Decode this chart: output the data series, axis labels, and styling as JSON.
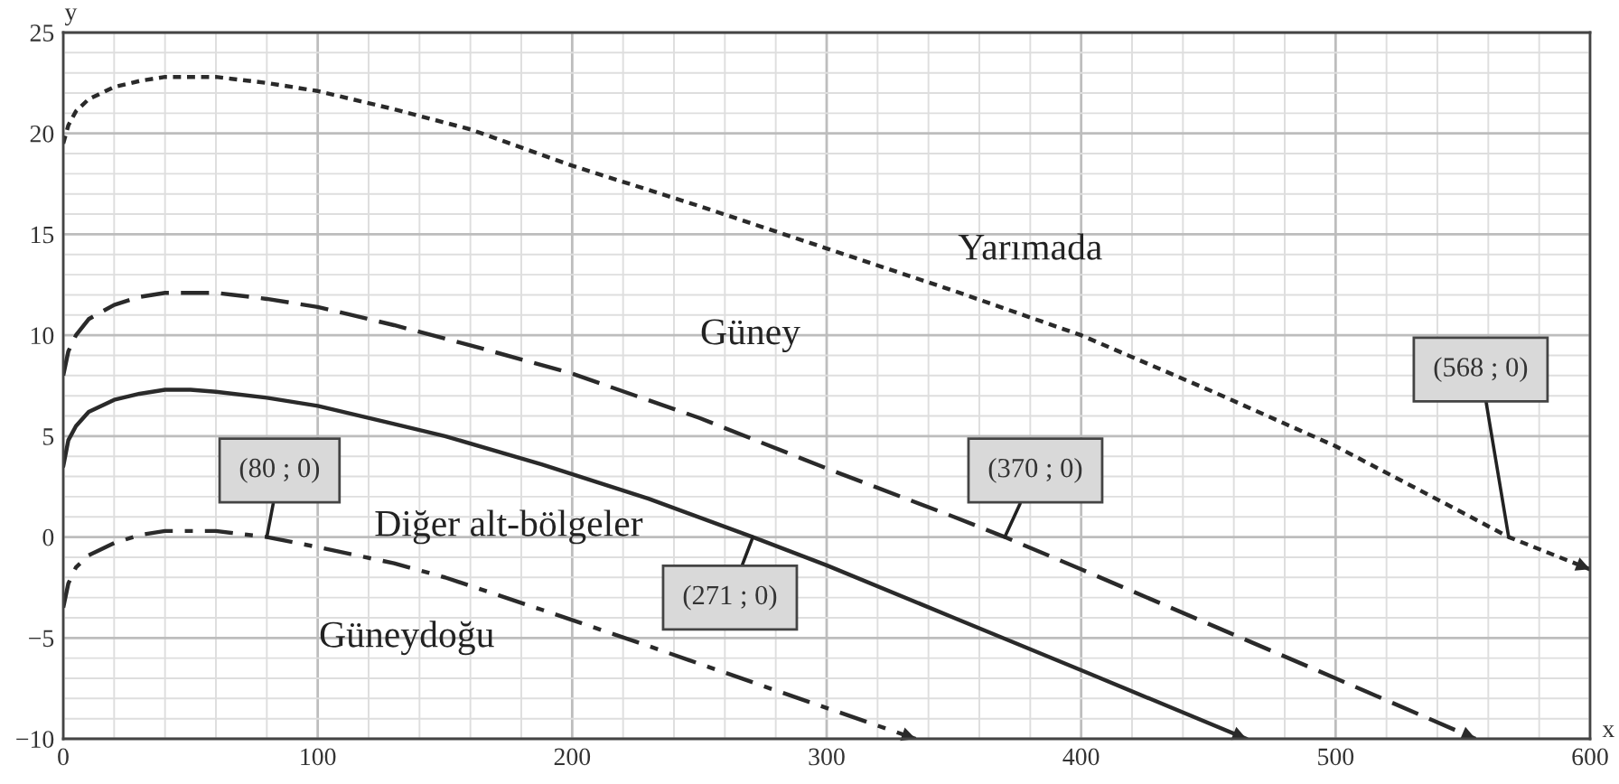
{
  "chart_data": {
    "type": "line",
    "xlabel": "x",
    "ylabel": "y",
    "xlim": [
      0,
      600
    ],
    "ylim": [
      -10,
      25
    ],
    "xticks": [
      0,
      100,
      200,
      300,
      400,
      500,
      600
    ],
    "yticks": [
      -10,
      -5,
      0,
      5,
      10,
      15,
      20,
      25
    ],
    "grid": true,
    "legend": false,
    "marker": "none",
    "series": [
      {
        "name": "Yarımada",
        "color": "#2a2a2a",
        "line_style": "dotted",
        "x": [
          0,
          2,
          5,
          10,
          20,
          30,
          40,
          50,
          60,
          80,
          100,
          130,
          160,
          200,
          250,
          300,
          350,
          400,
          450,
          500,
          550,
          568,
          600
        ],
        "values": [
          19.5,
          20.4,
          21.1,
          21.7,
          22.3,
          22.6,
          22.8,
          22.8,
          22.8,
          22.5,
          22.1,
          21.2,
          20.2,
          18.4,
          16.4,
          14.3,
          12.2,
          10.0,
          7.3,
          4.5,
          1.2,
          0,
          -1.6
        ]
      },
      {
        "name": "Güney",
        "color": "#2a2a2a",
        "line_style": "dashed",
        "x": [
          0,
          2,
          5,
          10,
          20,
          30,
          40,
          50,
          60,
          80,
          100,
          130,
          160,
          200,
          250,
          300,
          350,
          370,
          400,
          450,
          500,
          555
        ],
        "values": [
          8.0,
          9.2,
          10.0,
          10.8,
          11.5,
          11.9,
          12.1,
          12.1,
          12.1,
          11.8,
          11.4,
          10.5,
          9.5,
          8.1,
          5.9,
          3.4,
          1.0,
          0,
          -1.6,
          -4.3,
          -7.0,
          -10.0
        ]
      },
      {
        "name": "Diğer alt-bölgeler",
        "color": "#2a2a2a",
        "line_style": "solid",
        "x": [
          0,
          2,
          5,
          10,
          20,
          30,
          40,
          50,
          60,
          80,
          100,
          130,
          150,
          188,
          230,
          271,
          300,
          350,
          400,
          465
        ],
        "values": [
          3.5,
          4.8,
          5.5,
          6.2,
          6.8,
          7.1,
          7.3,
          7.3,
          7.2,
          6.9,
          6.5,
          5.6,
          5.0,
          3.6,
          1.9,
          0,
          -1.4,
          -4.0,
          -6.6,
          -10.0
        ]
      },
      {
        "name": "Güneydoğu",
        "color": "#2a2a2a",
        "line_style": "dashdot",
        "x": [
          0,
          2,
          5,
          10,
          20,
          30,
          40,
          50,
          60,
          80,
          100,
          130,
          150,
          188,
          230,
          280,
          335
        ],
        "values": [
          -3.5,
          -2.3,
          -1.5,
          -0.9,
          -0.3,
          0.1,
          0.3,
          0.3,
          0.3,
          0,
          -0.5,
          -1.3,
          -2.0,
          -3.6,
          -5.4,
          -7.6,
          -10.0
        ]
      }
    ],
    "annotations": [
      {
        "text": "(80 ; 0)",
        "x": 80,
        "y": 0
      },
      {
        "text": "(271 ; 0)",
        "x": 271,
        "y": 0
      },
      {
        "text": "(370 ; 0)",
        "x": 370,
        "y": 0
      },
      {
        "text": "(568 ; 0)",
        "x": 568,
        "y": 0
      }
    ]
  }
}
